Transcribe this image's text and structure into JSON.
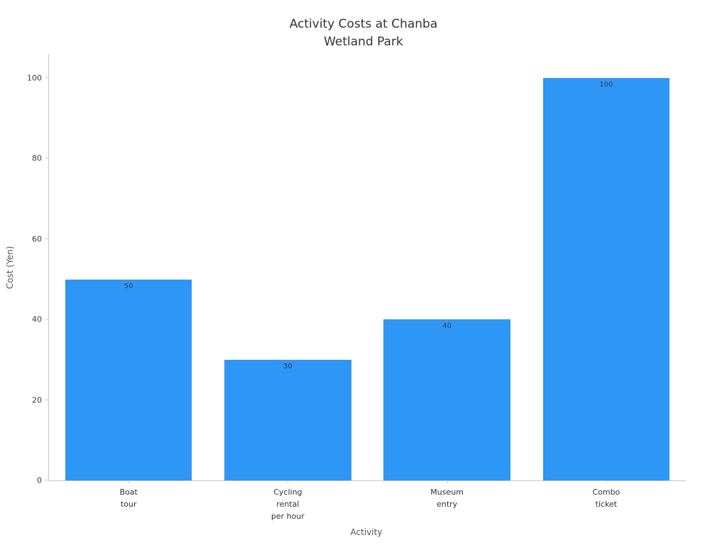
{
  "chart_data": {
    "type": "bar",
    "title_lines": [
      "Activity Costs at Chanba",
      "Wetland Park"
    ],
    "title": "Activity Costs at Chanba Wetland Park",
    "categories": [
      "Boat\ntour",
      "Cycling\nrental\nper hour",
      "Museum\nentry",
      "Combo\nticket"
    ],
    "values": [
      50,
      30,
      40,
      100
    ],
    "value_labels": [
      "50",
      "30",
      "40",
      "100"
    ],
    "xlabel": "Activity",
    "ylabel": "Cost (Yen)",
    "ylim": [
      0,
      106
    ],
    "yticks": [
      0,
      20,
      40,
      60,
      80,
      100
    ],
    "grid": false,
    "legend": "none",
    "bar_color": "#2e96f5",
    "bar_value_label_color": "#3b3b3b",
    "axis_color": "#c8c8c8",
    "title_color": "#333333",
    "tick_label_color": "#3c3c3c",
    "axis_label_color": "#555555",
    "background_color": "#ffffff"
  }
}
